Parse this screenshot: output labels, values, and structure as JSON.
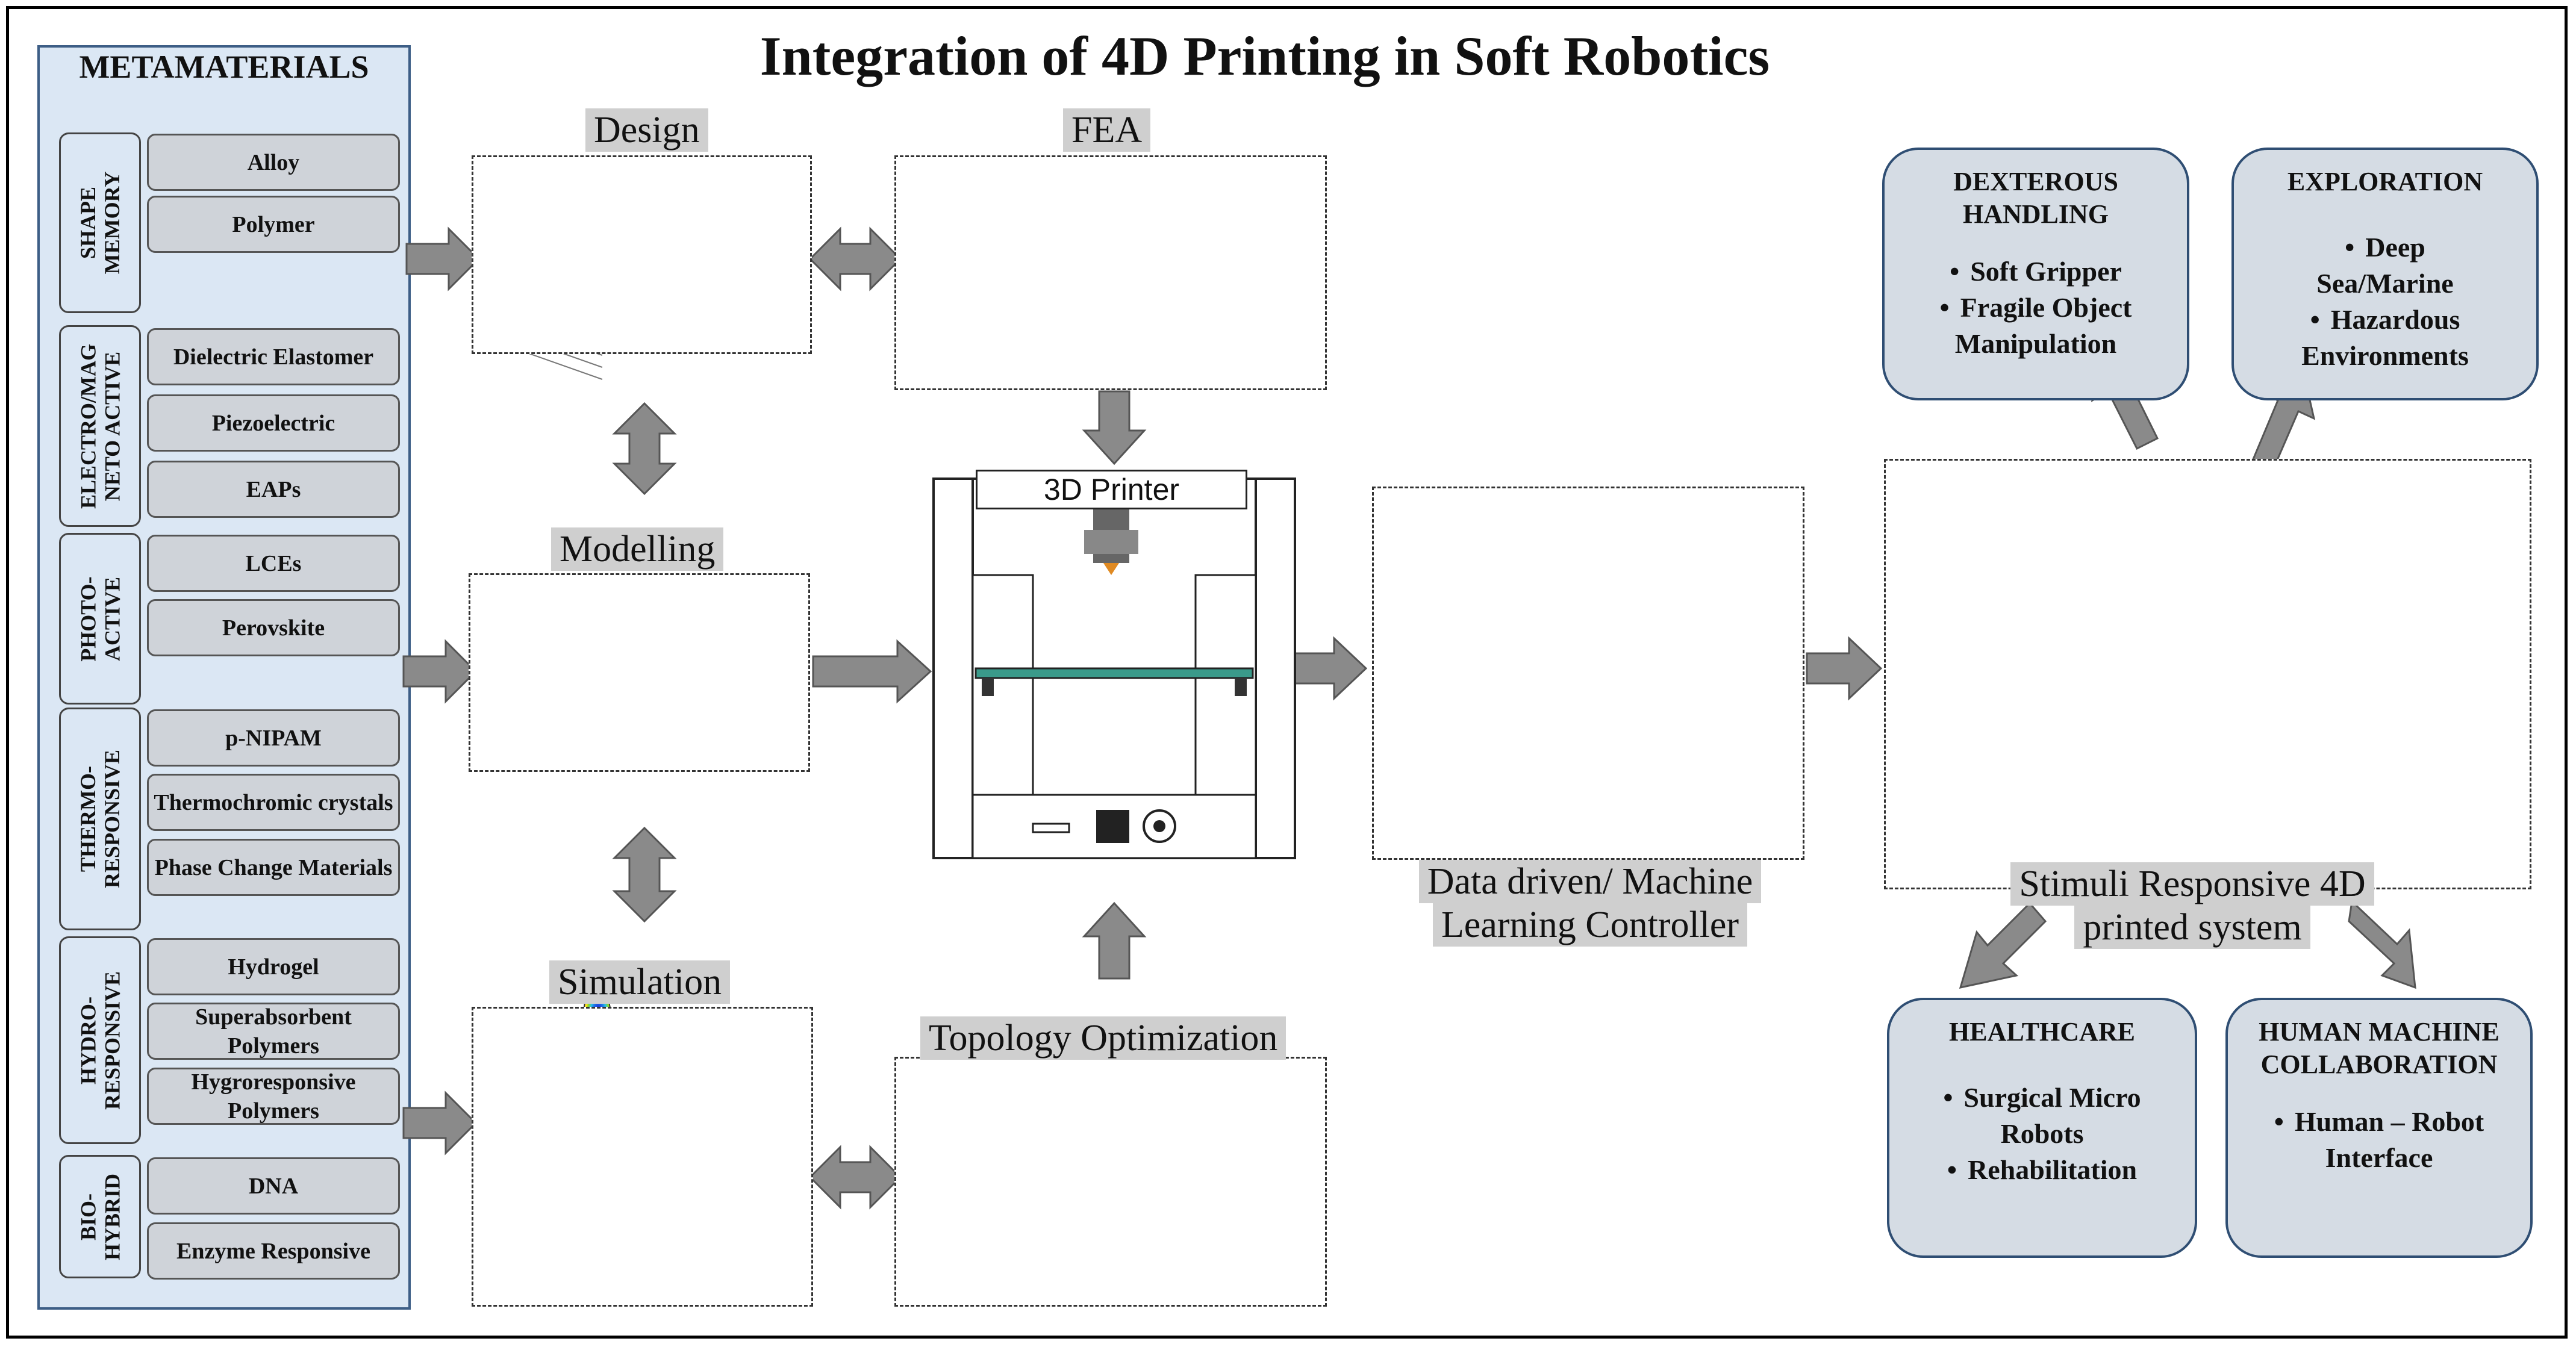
{
  "title": "Integration of 4D Printing in Soft Robotics",
  "metamaterials": {
    "title": "METAMATERIALS",
    "groups": [
      {
        "label": [
          "SHAPE",
          "MEMORY"
        ],
        "items": [
          "Alloy",
          "Polymer"
        ]
      },
      {
        "label": [
          "ELECTRO/MAG",
          "NETO ACTIVE"
        ],
        "items": [
          "Dielectric Elastomer",
          "Piezoelectric",
          "EAPs"
        ]
      },
      {
        "label": [
          "PHOTO-",
          "ACTIVE"
        ],
        "items": [
          "LCEs",
          "Perovskite"
        ]
      },
      {
        "label": [
          "THERMO-",
          "RESPONSIVE"
        ],
        "items": [
          "p-NIPAM",
          "Thermochromic crystals",
          "Phase Change Materials"
        ]
      },
      {
        "label": [
          "HYDRO-",
          "RESPONSIVE"
        ],
        "items": [
          "Hydrogel",
          "Superabsorbent Polymers",
          "Hygroresponsive Polymers"
        ]
      },
      {
        "label": [
          "BIO-",
          "HYBRID"
        ],
        "items": [
          "DNA",
          "Enzyme Responsive"
        ]
      }
    ]
  },
  "stages": {
    "design": "Design",
    "fea": "FEA",
    "modelling": "Modelling",
    "simulation": "Simulation",
    "topology": "Topology Optimization",
    "printer": "3D Printer",
    "ml": [
      "Data driven/ Machine",
      "Learning Controller"
    ],
    "stimuli": [
      "Stimuli Responsive 4D",
      "printed system"
    ]
  },
  "applications": {
    "dexterous": {
      "title": [
        "DEXTEROUS",
        "HANDLING"
      ],
      "items": [
        [
          "Soft Gripper"
        ],
        [
          "Fragile Object",
          "Manipulation"
        ]
      ]
    },
    "exploration": {
      "title": [
        "EXPLORATION"
      ],
      "items": [
        [
          "Deep",
          "Sea/Marine"
        ],
        [
          "Hazardous",
          "Environments"
        ]
      ]
    },
    "healthcare": {
      "title": [
        "HEALTHCARE"
      ],
      "items": [
        [
          "Surgical Micro",
          "Robots"
        ],
        [
          "Rehabilitation"
        ]
      ]
    },
    "hmc": {
      "title": [
        "HUMAN MACHINE",
        "COLLABORATION"
      ],
      "items": [
        [
          "Human – Robot",
          "Interface"
        ]
      ]
    }
  },
  "stimuli_icons": [
    "thermometer-icon",
    "lightbulb-icon",
    "magnet-icon",
    "lightning-icon",
    "water-drop-icon"
  ],
  "colors": {
    "panel": "#dbe7f4",
    "panel_border": "#3d5e86",
    "app_fill": "#d5dce4",
    "app_border": "#2f4e73",
    "arrow": "#8a8a8a"
  }
}
